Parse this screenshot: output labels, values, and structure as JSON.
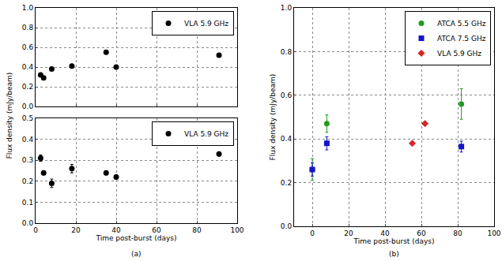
{
  "chart_data": [
    {
      "type": "scatter",
      "tick_labels": "y",
      "grid": true,
      "legend": "upper right",
      "xlim": [
        0,
        100
      ],
      "xticks": [
        0,
        20,
        40,
        60,
        80,
        100
      ],
      "ylim": [
        0,
        1
      ],
      "yticks": [
        {
          "value": 0,
          "label": "0.0"
        },
        0.2,
        0.4,
        0.6,
        0.8,
        {
          "value": 1,
          "label": "1.0"
        }
      ],
      "series": [
        {
          "name": "VLA 5.9 GHz",
          "color": "#000000",
          "marker": "circle",
          "x": [
            2.5,
            4,
            8,
            18,
            35,
            40,
            91
          ],
          "values": [
            0.32,
            0.29,
            0.38,
            0.41,
            0.55,
            0.4,
            0.52
          ]
        }
      ]
    },
    {
      "type": "scatter",
      "grid": true,
      "legend": "upper right",
      "xlabel": "Time post-burst (days)",
      "ylabel": "Flux density (mJy/beam)",
      "xlim": [
        0,
        100
      ],
      "xticks": [
        0,
        20,
        40,
        60,
        80,
        100
      ],
      "ylim": [
        0,
        0.5
      ],
      "yticks": [
        {
          "value": 0,
          "label": "0.0"
        },
        0.1,
        0.2,
        0.3,
        0.4,
        0.5
      ],
      "series": [
        {
          "name": "VLA 5.9 GHz",
          "color": "#000000",
          "marker": "circle",
          "x": [
            2.5,
            4,
            8,
            18,
            35,
            40,
            91
          ],
          "values": [
            0.31,
            0.24,
            0.19,
            0.26,
            0.24,
            0.22,
            0.33
          ],
          "errors": [
            0.015,
            0.01,
            0.02,
            0.02,
            0.01,
            0.01,
            0.01
          ]
        }
      ]
    },
    {
      "type": "scatter",
      "grid": true,
      "legend": "upper right",
      "xlabel": "Time post-burst (days)",
      "ylabel": "Flux density (mJy/beam)",
      "xlim": [
        -10,
        100
      ],
      "xticks": [
        0,
        20,
        40,
        60,
        80,
        100
      ],
      "ylim": [
        0,
        1
      ],
      "yticks": [
        {
          "value": 0,
          "label": "0.0"
        },
        0.2,
        0.4,
        0.6,
        0.8,
        {
          "value": 1,
          "label": "1.0"
        }
      ],
      "series": [
        {
          "name": "ATCA 5.5 GHz",
          "color": "#1e9e1e",
          "marker": "circle",
          "x": [
            0,
            8,
            82
          ],
          "values": [
            0.26,
            0.47,
            0.56
          ],
          "errors": [
            0.05,
            0.04,
            0.07
          ]
        },
        {
          "name": "ATCA 7.5 GHz",
          "color": "#1414c8",
          "marker": "square",
          "x": [
            0,
            8,
            82
          ],
          "values": [
            0.26,
            0.38,
            0.365
          ],
          "errors": [
            0.03,
            0.03,
            0.025
          ]
        },
        {
          "name": "VLA 5.9 GHz",
          "color": "#d62728",
          "marker": "diamond",
          "x": [
            55,
            62
          ],
          "values": [
            0.38,
            0.47
          ]
        }
      ]
    }
  ],
  "captions": [
    "(a)",
    "(b)"
  ]
}
